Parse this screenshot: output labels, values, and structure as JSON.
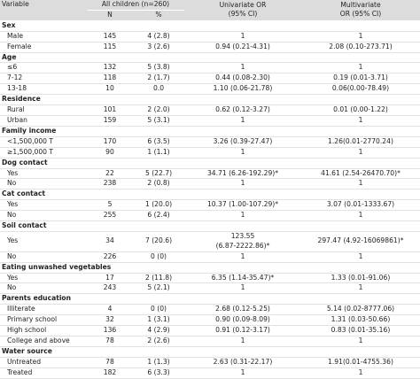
{
  "header": {
    "variable": "Variable",
    "group": "All children (n=260)",
    "univariate": "Univariate OR\n(95% CI)",
    "multivariate": "Multivariate\nOR (95% CI)",
    "n": "N",
    "pct": "%"
  },
  "sections": [
    {
      "label": "Sex",
      "rows": [
        [
          "Male",
          "145",
          "4 (2.8)",
          "1",
          "1"
        ],
        [
          "Female",
          "115",
          "3 (2.6)",
          "0.94 (0.21-4.31)",
          "2.08 (0.10-273.71)"
        ]
      ]
    },
    {
      "label": "Age",
      "rows": [
        [
          "≤6",
          "132",
          "5 (3.8)",
          "1",
          "1"
        ],
        [
          "7-12",
          "118",
          "2 (1.7)",
          "0.44 (0.08-2.30)",
          "0.19 (0.01-3.71)"
        ],
        [
          "13-18",
          "10",
          "0.0",
          "1.10 (0.06-21.78)",
          "0.06(0.00-78.49)"
        ]
      ]
    },
    {
      "label": "Residence",
      "rows": [
        [
          "Rural",
          "101",
          "2 (2.0)",
          "0.62 (0.12-3.27)",
          "0.01 (0.00-1.22)"
        ],
        [
          "Urban",
          "159",
          "5 (3.1)",
          "1",
          "1"
        ]
      ]
    },
    {
      "label": "Family income",
      "rows": [
        [
          "<1,500,000 T",
          "170",
          "6 (3.5)",
          "3.26 (0.39-27.47)",
          "1.26(0.01-2770.24)"
        ],
        [
          "≥1,500,000 T",
          "90",
          "1 (1.1)",
          "1",
          "1"
        ]
      ]
    },
    {
      "label": "Dog contact",
      "rows": [
        [
          "Yes",
          "22",
          "5 (22.7)",
          "34.71 (6.26-192.29)*",
          "41.61 (2.54-26470.70)*"
        ],
        [
          "No",
          "238",
          "2 (0.8)",
          "1",
          "1"
        ]
      ]
    },
    {
      "label": "Cat contact",
      "rows": [
        [
          "Yes",
          "5",
          "1 (20.0)",
          "10.37 (1.00-107.29)*",
          "3.07 (0.01-1333.67)"
        ],
        [
          "No",
          "255",
          "6 (2.4)",
          "1",
          "1"
        ]
      ]
    },
    {
      "label": "Soil contact",
      "rows": [
        [
          "Yes",
          "34",
          "7 (20.6)",
          "123.55\n(6.87-2222.86)*",
          "297.47 (4.92-16069861)*"
        ],
        [
          "No",
          "226",
          "0 (0)",
          "1",
          "1"
        ]
      ]
    },
    {
      "label": "Eating unwashed vegetables",
      "rows": [
        [
          "Yes",
          "17",
          "2 (11.8)",
          "6.35 (1.14-35.47)*",
          "1.33 (0.01-91.06)"
        ],
        [
          "No",
          "243",
          "5 (2.1)",
          "1",
          "1"
        ]
      ]
    },
    {
      "label": "Parents education",
      "rows": [
        [
          "Illiterate",
          "4",
          "0 (0)",
          "2.68 (0.12-5.25)",
          "5.14 (0.02-8777.06)"
        ],
        [
          "Primary school",
          "32",
          "1 (3.1)",
          "0.90 (0.09-8.09)",
          "1.31 (0.03-50.66)"
        ],
        [
          "High school",
          "136",
          "4 (2.9)",
          "0.91 (0.12-3.17)",
          "0.83 (0.01-35.16)"
        ],
        [
          "College and above",
          "78",
          "2 (2.6)",
          "1",
          "1"
        ]
      ]
    },
    {
      "label": "Water source",
      "rows": [
        [
          "Untreated",
          "78",
          "1 (1.3)",
          "2.63 (0.31-22.17)",
          "1.91(0.01-4755.36)"
        ],
        [
          "Treated",
          "182",
          "6 (3.3)",
          "1",
          "1"
        ]
      ]
    }
  ]
}
